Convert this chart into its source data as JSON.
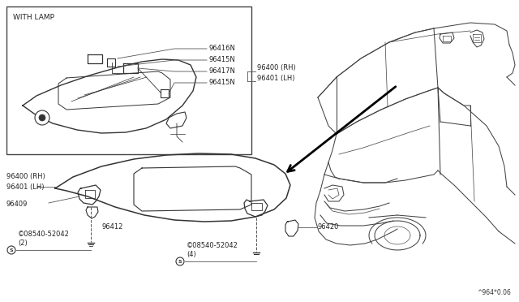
{
  "bg_color": "#ffffff",
  "line_color": "#333333",
  "diagram_code": "^964*0.06",
  "labels": {
    "with_lamp": "WITH LAMP",
    "p96416N": "96416N",
    "p96415N_top": "96415N",
    "p96417N": "96417N",
    "p96415N_bot": "96415N",
    "p96400_inset": "96400 (RH)\n96401 (LH)",
    "p96400_main": "96400 (RH)\n96401 (LH)",
    "p96409": "96409",
    "p96412": "96412",
    "p96420": "96420",
    "p08540_left": "©08540-52042\n(2)",
    "p08540_center": "©08540-52042\n(4)"
  },
  "colors": {
    "inset_box": "#444444",
    "part_line": "#333333",
    "label_line": "#555555",
    "car_line": "#444444",
    "arrow_color": "#000000"
  },
  "font_sizes": {
    "label": 6.0,
    "with_lamp": 6.5,
    "diagram_code": 5.5
  }
}
